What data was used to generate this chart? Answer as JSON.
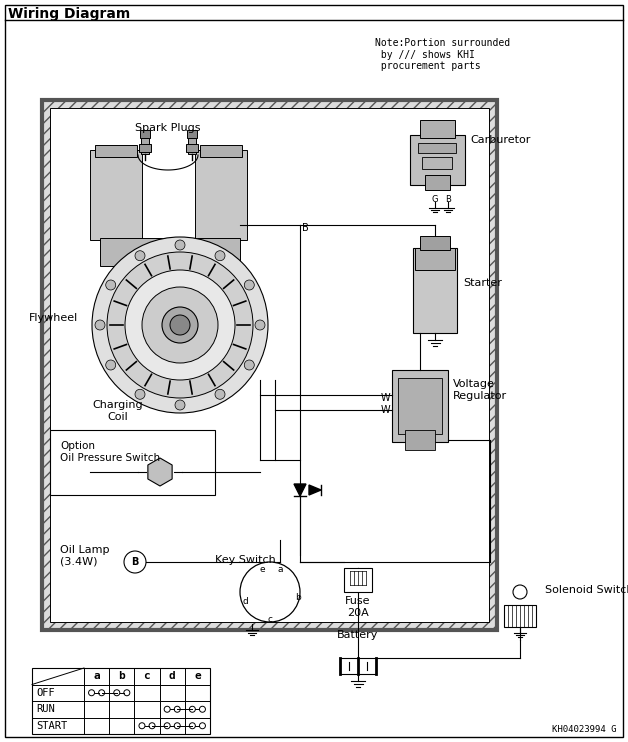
{
  "title": "Wiring Diagram",
  "bg_color": "#ffffff",
  "border_color": "#000000",
  "note_text": "Note:Portion surrounded\n by /// shows KHI\n procurement parts",
  "labels": {
    "spark_plugs": "Spark Plugs",
    "carburetor": "Carburetor",
    "flywheel": "Flywheel",
    "charging_coil": "Charging\nCoil",
    "starter": "Starter",
    "voltage_reg": "Voltage\nRegulator",
    "oil_pressure": "Option\nOil Pressure Switch",
    "oil_lamp": "Oil Lamp\n(3.4W)",
    "key_switch": "Key Switch",
    "fuse": "Fuse\n20A",
    "battery": "Battery",
    "solenoid": "Solenoid Switch"
  },
  "part_id": "KH04023994 G",
  "line_color": "#000000"
}
